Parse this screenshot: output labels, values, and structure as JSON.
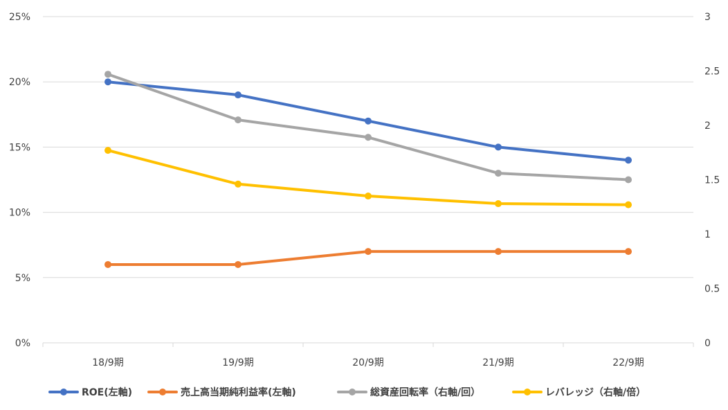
{
  "chart_data": {
    "type": "line",
    "categories": [
      "18/9期",
      "19/9期",
      "20/9期",
      "21/9期",
      "22/9期"
    ],
    "y_left": {
      "ticks": [
        "0%",
        "5%",
        "10%",
        "15%",
        "20%",
        "25%"
      ],
      "range": [
        0,
        25
      ]
    },
    "y_right": {
      "ticks": [
        "0",
        "0.5",
        "1",
        "1.5",
        "2",
        "2.5",
        "3"
      ],
      "range": [
        0,
        3
      ]
    },
    "grid": true,
    "legend_position": "bottom",
    "series": [
      {
        "name": "ROE(左軸)",
        "axis": "left",
        "color": "#4472C4",
        "values": [
          20,
          19,
          17,
          15,
          14
        ]
      },
      {
        "name": "売上高当期純利益率(左軸)",
        "axis": "left",
        "color": "#ED7D31",
        "values": [
          6,
          6,
          7,
          7,
          7
        ]
      },
      {
        "name": "総資産回転率（右軸/回）",
        "axis": "right",
        "color": "#A5A5A5",
        "values": [
          2.47,
          2.05,
          1.89,
          1.56,
          1.5
        ]
      },
      {
        "name": "レバレッジ（右軸/倍）",
        "axis": "right",
        "color": "#FFC000",
        "values": [
          1.77,
          1.46,
          1.35,
          1.28,
          1.27
        ]
      }
    ]
  }
}
